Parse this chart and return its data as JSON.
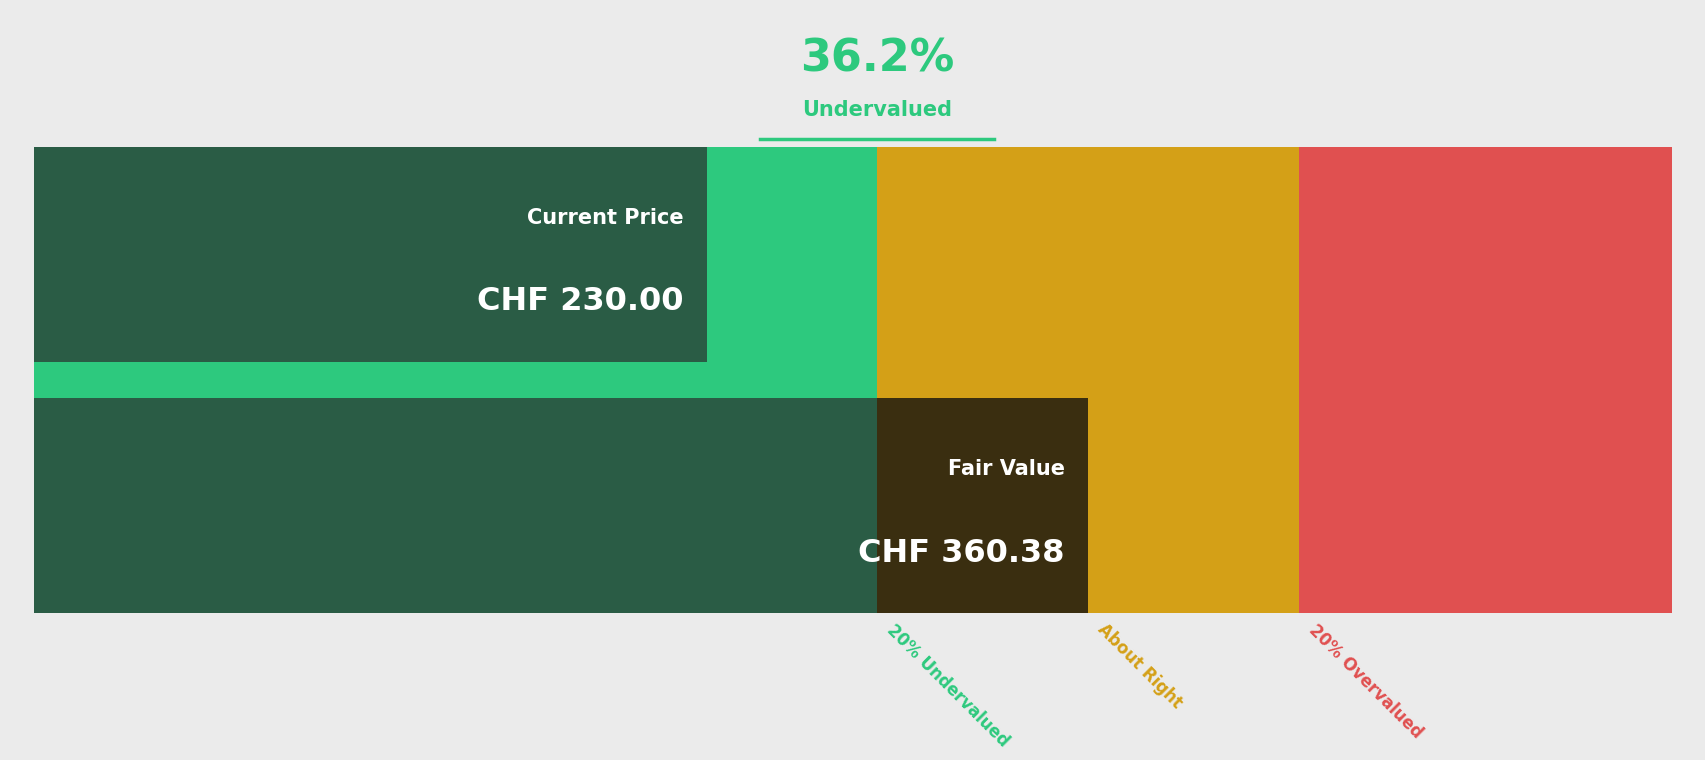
{
  "background_color": "#ebebeb",
  "title_percentage": "36.2%",
  "title_label": "Undervalued",
  "title_color": "#2dc97e",
  "current_price_label": "Current Price",
  "current_price_value": "CHF 230.00",
  "fair_value_label": "Fair Value",
  "fair_value_value": "CHF 360.38",
  "bar_colors": {
    "green_light": "#2dc97e",
    "green_dark": "#2a5c45",
    "yellow": "#d4a017",
    "red": "#e05050",
    "brown": "#3a2e10"
  },
  "segment_labels": [
    "20% Undervalued",
    "About Right",
    "20% Overvalued"
  ],
  "segment_label_colors": [
    "#2dc97e",
    "#d4a017",
    "#e05050"
  ],
  "current_price": 230.0,
  "fair_value": 360.38,
  "total_width": 560
}
